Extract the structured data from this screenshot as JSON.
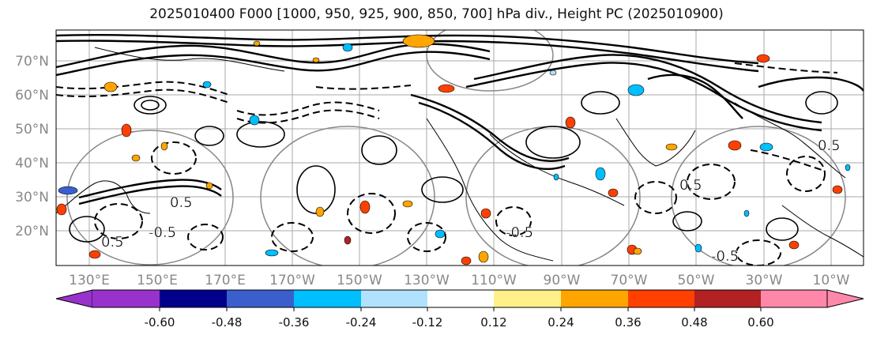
{
  "title": "2025010400 F000 [1000, 950, 925, 900, 850, 700] hPa div., Height PC (2025010900)",
  "latitude_labels": [
    "70°N",
    "60°N",
    "50°N",
    "40°N",
    "30°N",
    "20°N"
  ],
  "longitude_labels": [
    "130°E",
    "150°E",
    "170°E",
    "170°W",
    "150°W",
    "130°W",
    "110°W",
    "90°W",
    "70°W",
    "50°W",
    "30°W",
    "10°W"
  ],
  "contour_labels": [
    "-0.5",
    "0.5"
  ],
  "colorbar": {
    "tick_labels": [
      "-0.60",
      "-0.48",
      "-0.36",
      "-0.24",
      "-0.12",
      "0.12",
      "0.24",
      "0.36",
      "0.48",
      "0.60"
    ],
    "colors": [
      "#9932cc",
      "#00008b",
      "#3a5fcd",
      "#00bfff",
      "#b0e2ff",
      "#ffffff",
      "#fff08a",
      "#ffa500",
      "#ff4000",
      "#b22222",
      "#ff88aa"
    ]
  },
  "colors": {
    "frame": "#000000",
    "grid": "#aaaaaa",
    "tick_text": "#888888"
  }
}
